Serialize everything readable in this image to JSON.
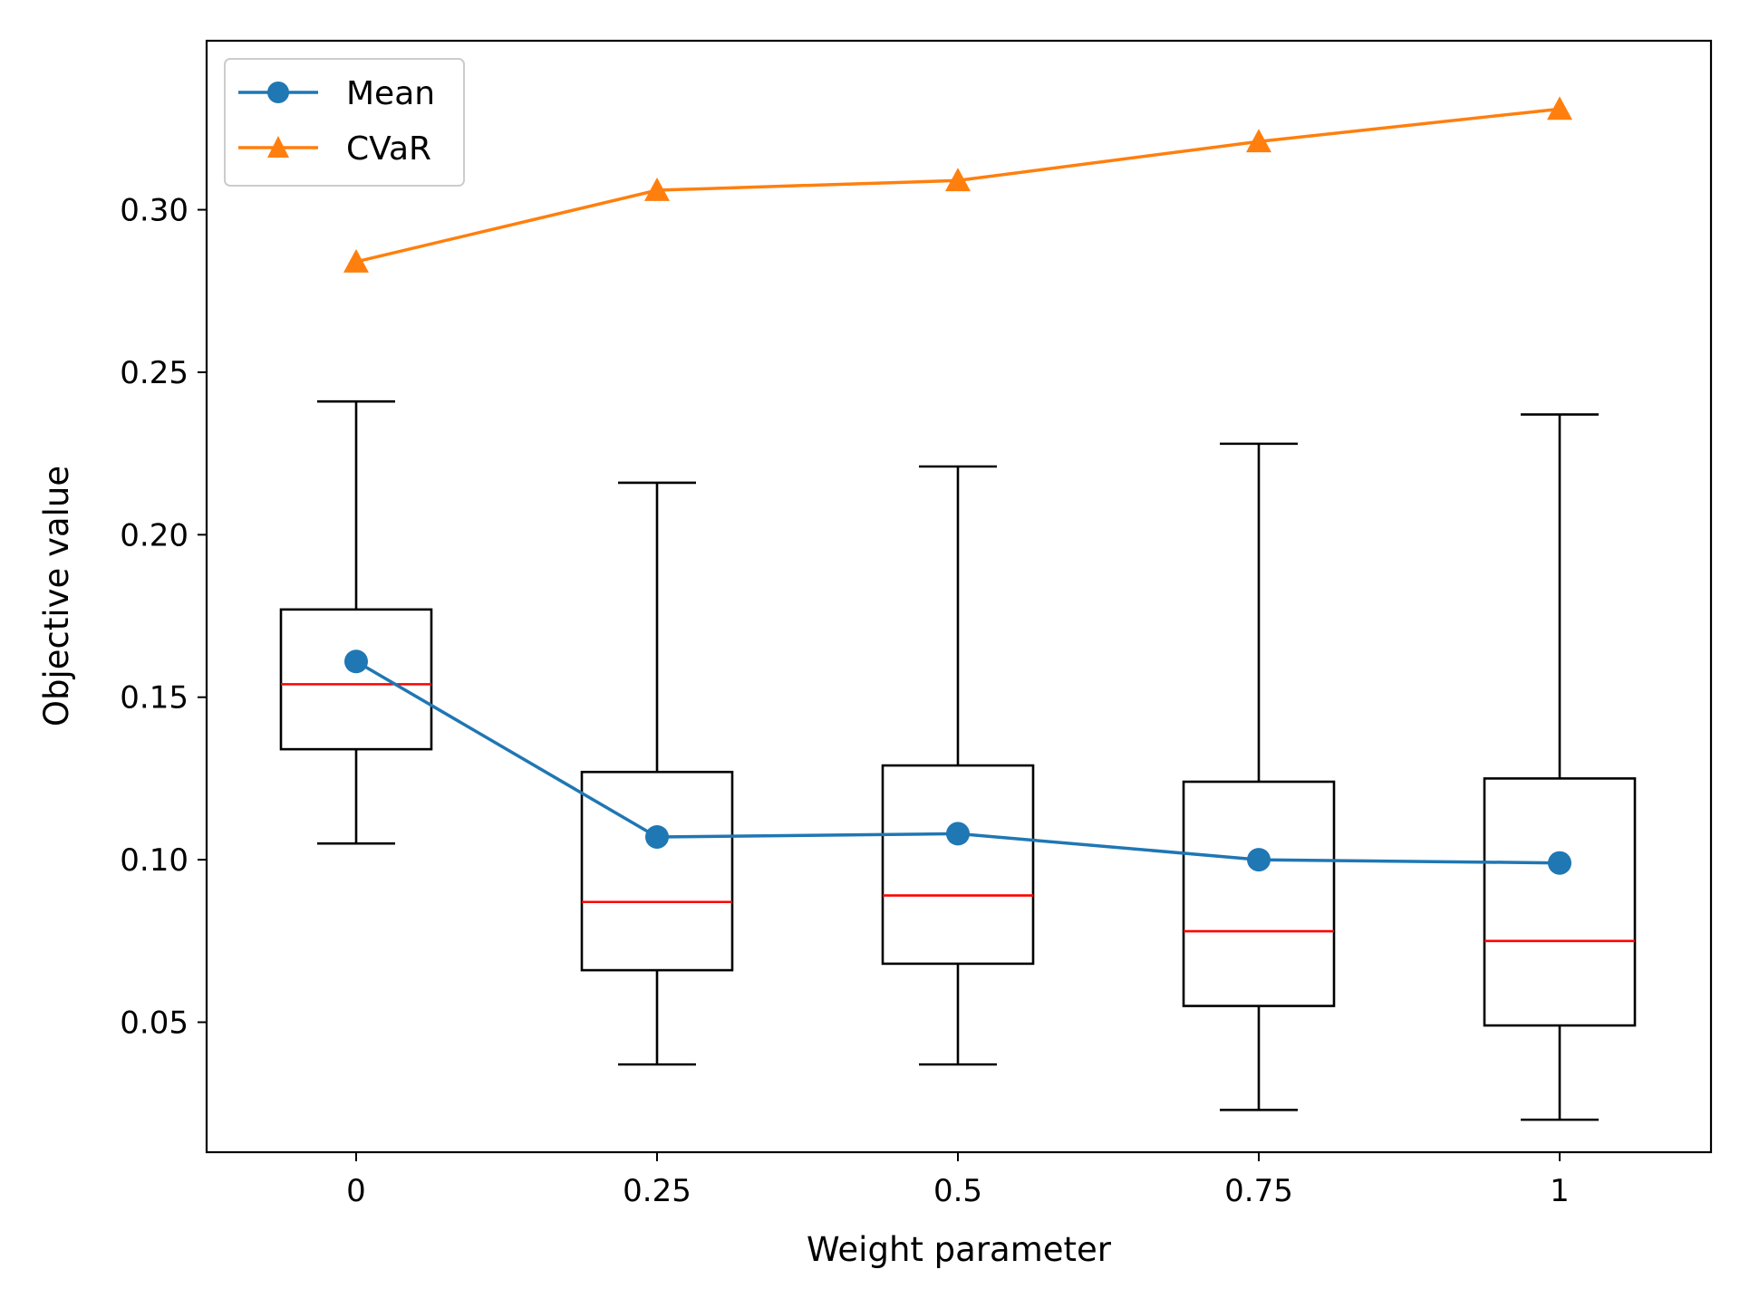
{
  "chart_data": {
    "type": "box",
    "title": "",
    "xlabel": "Weight parameter",
    "ylabel": "Objective value",
    "categories": [
      "0",
      "0.25",
      "0.5",
      "0.75",
      "1"
    ],
    "ylim": [
      0.01,
      0.352
    ],
    "yticks": [
      0.05,
      0.1,
      0.15,
      0.2,
      0.25,
      0.3
    ],
    "ytick_labels": [
      "0.05",
      "0.10",
      "0.15",
      "0.20",
      "0.25",
      "0.30"
    ],
    "grid": false,
    "legend_position": "top-left",
    "boxes": [
      {
        "category": "0",
        "whisker_low": 0.105,
        "q1": 0.134,
        "median": 0.154,
        "q3": 0.177,
        "whisker_high": 0.241
      },
      {
        "category": "0.25",
        "whisker_low": 0.037,
        "q1": 0.066,
        "median": 0.087,
        "q3": 0.127,
        "whisker_high": 0.216
      },
      {
        "category": "0.5",
        "whisker_low": 0.037,
        "q1": 0.068,
        "median": 0.089,
        "q3": 0.129,
        "whisker_high": 0.221
      },
      {
        "category": "0.75",
        "whisker_low": 0.023,
        "q1": 0.055,
        "median": 0.078,
        "q3": 0.124,
        "whisker_high": 0.228
      },
      {
        "category": "1",
        "whisker_low": 0.02,
        "q1": 0.049,
        "median": 0.075,
        "q3": 0.125,
        "whisker_high": 0.237
      }
    ],
    "series": [
      {
        "name": "Mean",
        "marker": "circle",
        "color": "#1f77b4",
        "values": [
          0.161,
          0.107,
          0.108,
          0.1,
          0.099
        ]
      },
      {
        "name": "CVaR",
        "marker": "triangle",
        "color": "#ff7f0e",
        "values": [
          0.284,
          0.306,
          0.309,
          0.321,
          0.331
        ]
      }
    ],
    "colors": {
      "box": "#000000",
      "median": "#ff0000"
    }
  }
}
